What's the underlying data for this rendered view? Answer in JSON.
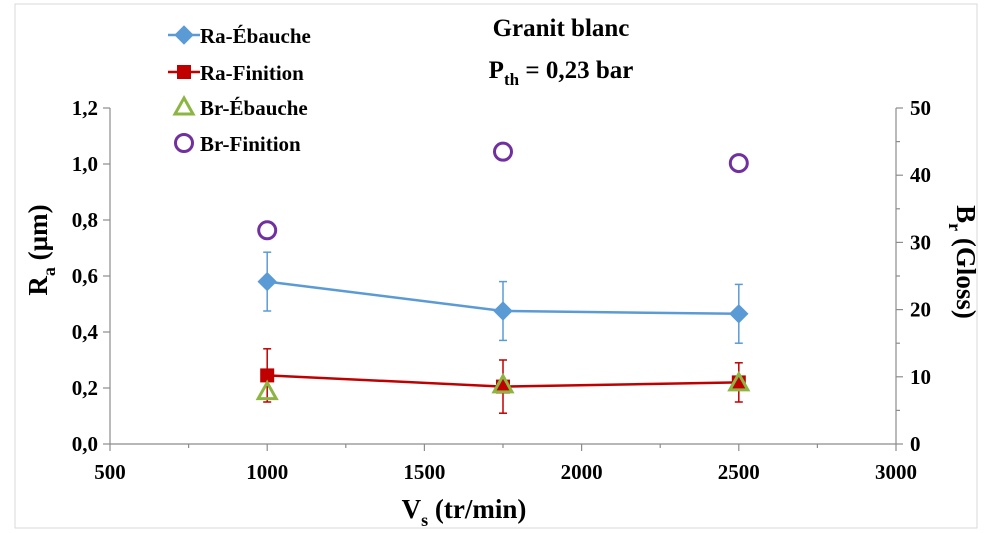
{
  "chart_data": {
    "type": "scatter",
    "title": "Granit blanc",
    "subtitle": {
      "main": "P",
      "sub": "th",
      "rest": " = 0,23 bar"
    },
    "xlabel": {
      "main": "V",
      "sub": "s",
      "rest": " (tr/min)"
    },
    "ylabel_left": {
      "main": "R",
      "sub": "a",
      "rest": " (µm)"
    },
    "ylabel_right": {
      "main": "B",
      "sub": "r",
      "rest": " (Gloss)"
    },
    "xlim": [
      500,
      3000
    ],
    "x_ticks": [
      500,
      1000,
      1500,
      2000,
      2500,
      3000
    ],
    "x_tick_labels": [
      "500",
      "1000",
      "1500",
      "2000",
      "2500",
      "3000"
    ],
    "ylim_left": [
      0,
      1.2
    ],
    "y_left_ticks": [
      0,
      0.2,
      0.4,
      0.6,
      0.8,
      1.0,
      1.2
    ],
    "y_left_tick_labels": [
      "0,0",
      "0,2",
      "0,4",
      "0,6",
      "0,8",
      "1,0",
      "1,2"
    ],
    "ylim_right": [
      0,
      50
    ],
    "y_right_ticks": [
      0,
      10,
      20,
      30,
      40,
      50
    ],
    "y_right_tick_labels": [
      "0",
      "10",
      "20",
      "30",
      "40",
      "50"
    ],
    "grid": false,
    "legend_position": "top-left",
    "series": [
      {
        "name": "Ra-Ébauche",
        "axis": "left",
        "marker": "diamond",
        "line": true,
        "color": "#5B9BD5",
        "x": [
          1000,
          1750,
          2500
        ],
        "y": [
          0.58,
          0.475,
          0.465
        ],
        "err": [
          0.105,
          0.105,
          0.105
        ]
      },
      {
        "name": "Ra-Finition",
        "axis": "left",
        "marker": "square",
        "line": true,
        "color": "#C00000",
        "x": [
          1000,
          1750,
          2500
        ],
        "y": [
          0.245,
          0.205,
          0.22
        ],
        "err": [
          0.095,
          0.095,
          0.07
        ]
      },
      {
        "name": "Br-Ébauche",
        "axis": "right",
        "marker": "triangle",
        "line": false,
        "color": "#8CB542",
        "x": [
          1000,
          1750,
          2500
        ],
        "y": [
          7.8,
          8.8,
          9.1
        ],
        "err": []
      },
      {
        "name": "Br-Finition",
        "axis": "right",
        "marker": "circle",
        "line": false,
        "color": "#7030A0",
        "x": [
          1000,
          1750,
          2500
        ],
        "y": [
          31.8,
          43.5,
          41.8
        ],
        "err": []
      }
    ]
  }
}
